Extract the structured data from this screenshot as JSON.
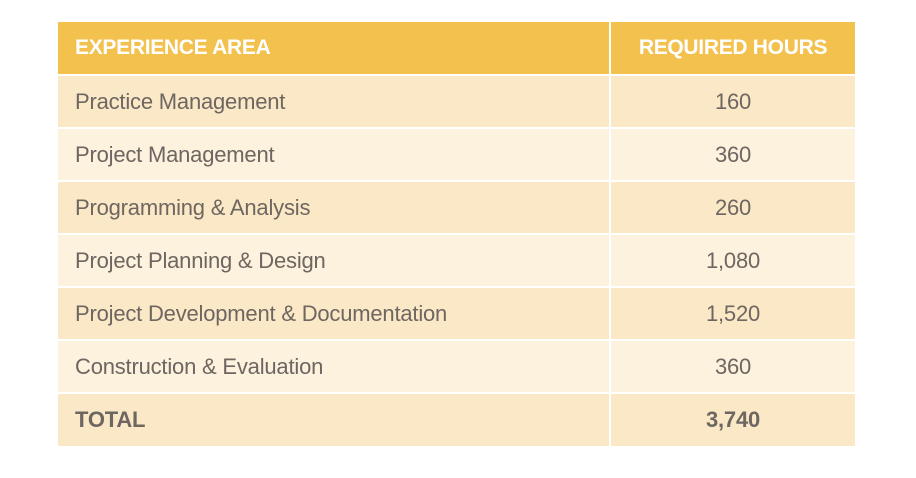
{
  "table": {
    "headers": {
      "area": "EXPERIENCE AREA",
      "hours": "REQUIRED HOURS"
    },
    "rows": [
      {
        "area": "Practice Management",
        "hours": "160"
      },
      {
        "area": "Project Management",
        "hours": "360"
      },
      {
        "area": "Programming & Analysis",
        "hours": "260"
      },
      {
        "area": "Project Planning & Design",
        "hours": "1,080"
      },
      {
        "area": "Project Development & Documentation",
        "hours": "1,520"
      },
      {
        "area": "Construction & Evaluation",
        "hours": "360"
      }
    ],
    "total": {
      "area": "TOTAL",
      "hours": "3,740"
    }
  },
  "colors": {
    "header_bg": "#f2c14e",
    "row_bg_dark": "#fbe8c6",
    "row_bg_light": "#fdf2dd",
    "text": "#6d6661"
  }
}
